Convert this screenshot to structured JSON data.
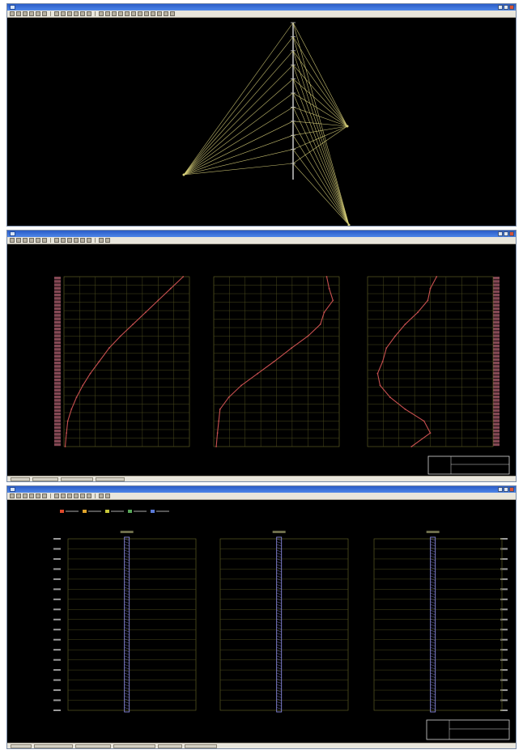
{
  "windows": [
    {
      "id": "tower-view",
      "title": "",
      "toolbar_buttons": 24
    },
    {
      "id": "profile-view",
      "title": "",
      "header_text": "",
      "tab_labels": []
    },
    {
      "id": "column-view",
      "title": "",
      "header_text": "",
      "legend_entries": [
        "",
        "",
        "",
        "",
        ""
      ],
      "legend_colors": [
        "#e0492b",
        "#e0a42b",
        "#c8c83a",
        "#58a858",
        "#5a7ad8"
      ],
      "tab_labels": []
    }
  ],
  "colors": {
    "tower_line": "#d8d07a",
    "mast": "#c8c8c8",
    "grid": "#4a4a1c",
    "trace": "#c85050",
    "column_trace": "#8888dd"
  },
  "chart_data": [
    {
      "type": "line",
      "series": [
        {
          "x": [
            0.95,
            0.85,
            0.75,
            0.65,
            0.55,
            0.45,
            0.36,
            0.28,
            0.21,
            0.15,
            0.1,
            0.06,
            0.03,
            0.02,
            0.01
          ],
          "y": [
            0,
            0.07,
            0.14,
            0.21,
            0.28,
            0.35,
            0.42,
            0.5,
            0.57,
            0.64,
            0.71,
            0.78,
            0.85,
            0.92,
            1.0
          ]
        }
      ]
    },
    {
      "type": "line",
      "series": [
        {
          "x": [
            0.9,
            0.92,
            0.95,
            0.88,
            0.85,
            0.75,
            0.62,
            0.48,
            0.35,
            0.22,
            0.12,
            0.05,
            0.04,
            0.03,
            0.02
          ],
          "y": [
            0,
            0.07,
            0.14,
            0.21,
            0.28,
            0.35,
            0.42,
            0.5,
            0.57,
            0.64,
            0.71,
            0.78,
            0.85,
            0.92,
            1.0
          ]
        }
      ]
    },
    {
      "type": "line",
      "series": [
        {
          "x": [
            0.55,
            0.5,
            0.48,
            0.4,
            0.3,
            0.22,
            0.15,
            0.12,
            0.08,
            0.1,
            0.18,
            0.3,
            0.45,
            0.5,
            0.35
          ],
          "y": [
            0,
            0.07,
            0.14,
            0.21,
            0.28,
            0.35,
            0.42,
            0.5,
            0.57,
            0.64,
            0.71,
            0.78,
            0.85,
            0.92,
            1.0
          ]
        }
      ]
    }
  ]
}
